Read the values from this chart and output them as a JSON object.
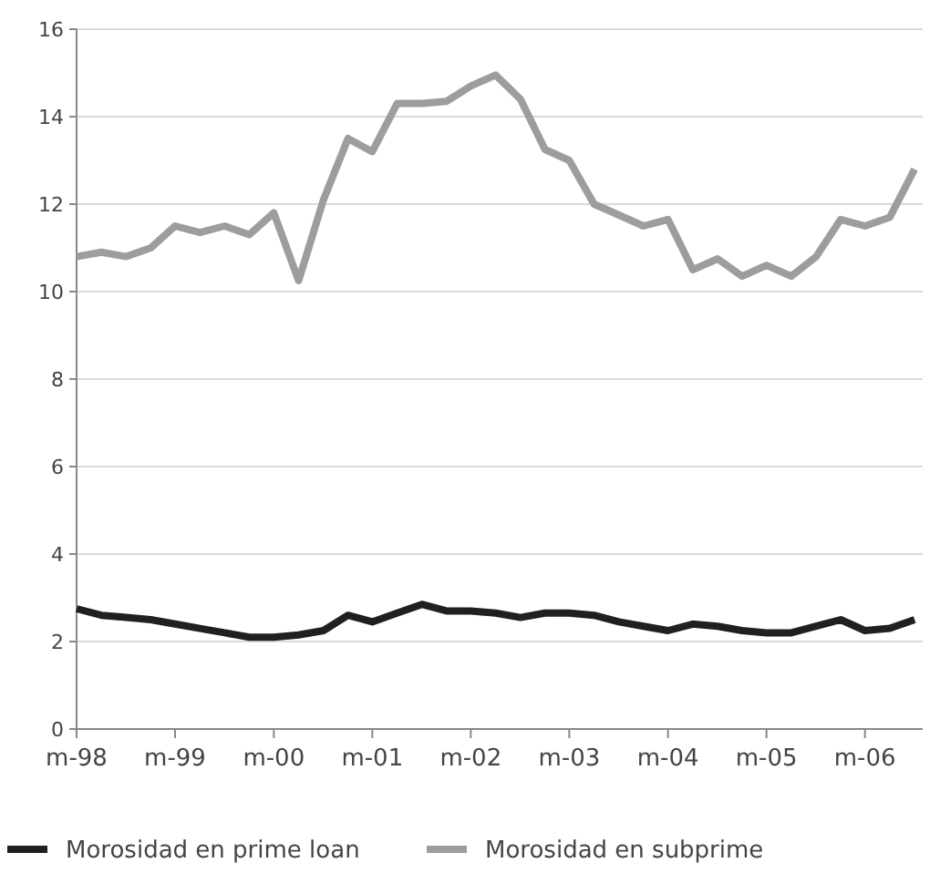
{
  "chart_data": {
    "type": "line",
    "x": [
      "1998-03",
      "1998-06",
      "1998-09",
      "1998-12",
      "1999-03",
      "1999-06",
      "1999-09",
      "1999-12",
      "2000-03",
      "2000-06",
      "2000-09",
      "2000-12",
      "2001-03",
      "2001-06",
      "2001-09",
      "2001-12",
      "2002-03",
      "2002-06",
      "2002-09",
      "2002-12",
      "2003-03",
      "2003-06",
      "2003-09",
      "2003-12",
      "2004-03",
      "2004-06",
      "2004-09",
      "2004-12",
      "2005-03",
      "2005-06",
      "2005-09",
      "2005-12",
      "2006-03",
      "2006-06",
      "2006-09"
    ],
    "series": [
      {
        "name": "Morosidad en prime loan",
        "color": "#231f20",
        "values": [
          2.75,
          2.6,
          2.55,
          2.5,
          2.4,
          2.3,
          2.2,
          2.1,
          2.1,
          2.15,
          2.25,
          2.6,
          2.45,
          2.65,
          2.85,
          2.7,
          2.7,
          2.65,
          2.55,
          2.65,
          2.65,
          2.6,
          2.45,
          2.35,
          2.25,
          2.4,
          2.35,
          2.25,
          2.2,
          2.2,
          2.35,
          2.5,
          2.25,
          2.3,
          2.5
        ]
      },
      {
        "name": "Morosidad en subprime",
        "color": "#9d9d9d",
        "values": [
          10.8,
          10.9,
          10.8,
          11.0,
          11.5,
          11.35,
          11.5,
          11.3,
          11.8,
          10.25,
          12.1,
          13.5,
          13.2,
          14.3,
          14.3,
          14.35,
          14.7,
          14.95,
          14.4,
          13.25,
          13.0,
          12.0,
          11.75,
          11.5,
          11.65,
          10.5,
          10.75,
          10.35,
          10.6,
          10.35,
          10.8,
          11.65,
          11.5,
          11.7,
          12.8
        ]
      }
    ],
    "xlim": [
      "1998-03",
      "2006-10"
    ],
    "xticks": [
      {
        "value": "1998-03",
        "label": "m-98"
      },
      {
        "value": "1999-03",
        "label": "m-99"
      },
      {
        "value": "2000-03",
        "label": "m-00"
      },
      {
        "value": "2001-03",
        "label": "m-01"
      },
      {
        "value": "2002-03",
        "label": "m-02"
      },
      {
        "value": "2003-03",
        "label": "m-03"
      },
      {
        "value": "2004-03",
        "label": "m-04"
      },
      {
        "value": "2005-03",
        "label": "m-05"
      },
      {
        "value": "2006-03",
        "label": "m-06"
      }
    ],
    "ylim": [
      0,
      16
    ],
    "yticks": [
      0,
      2,
      4,
      6,
      8,
      10,
      12,
      14,
      16
    ],
    "grid": "y",
    "legend": "bottom",
    "marker": "none",
    "line_style": "solid"
  }
}
